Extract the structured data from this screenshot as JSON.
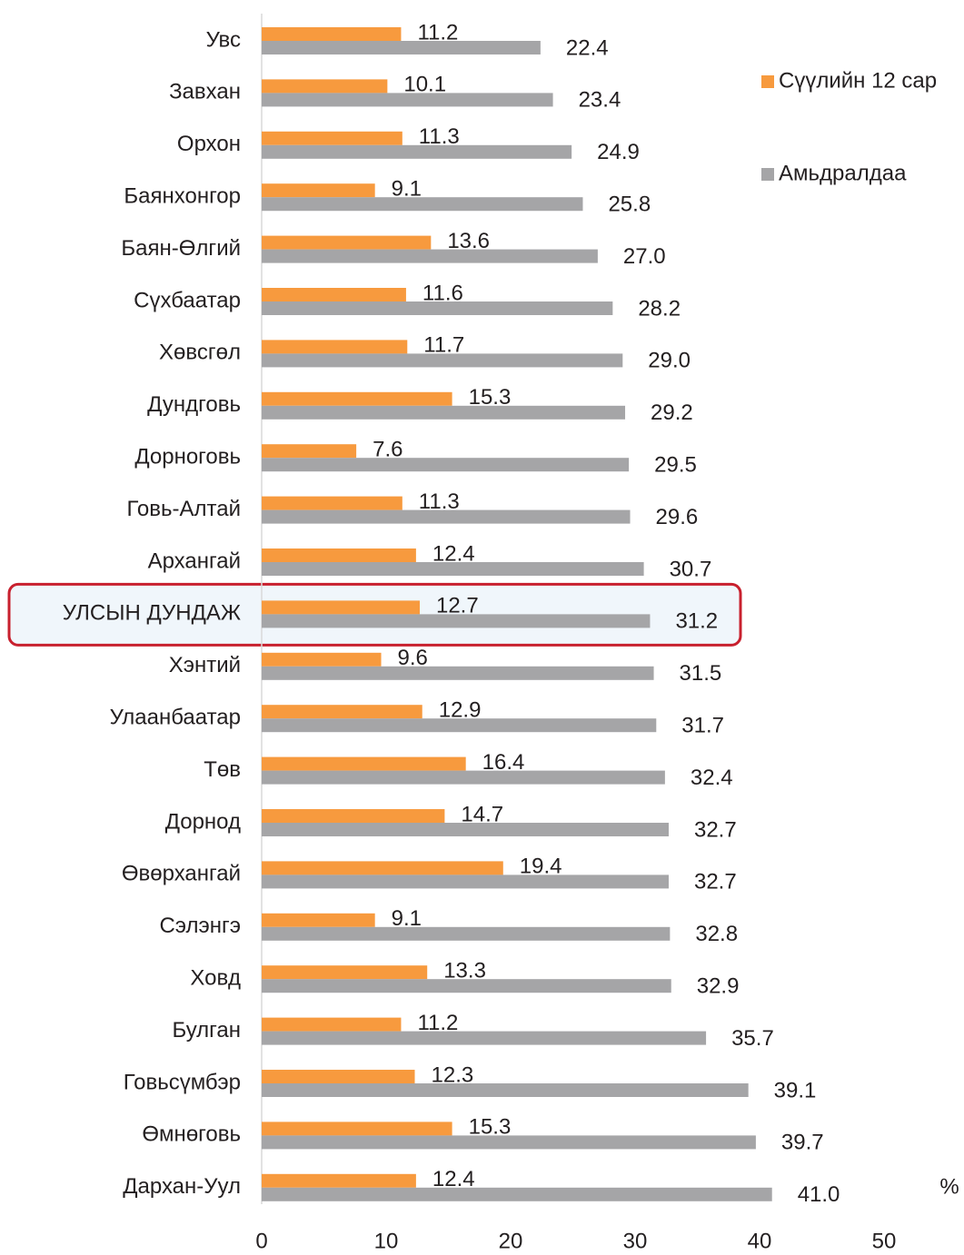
{
  "chart_data": {
    "type": "bar",
    "orientation": "horizontal",
    "categories": [
      "Увс",
      "Завхан",
      "Орхон",
      "Баянхонгор",
      "Баян-Өлгий",
      "Сүхбаатар",
      "Хөвсгөл",
      "Дундговь",
      "Дорноговь",
      "Говь-Алтай",
      "Архангай",
      "УЛСЫН ДУНДАЖ",
      "Хэнтий",
      "Улаанбаатар",
      "Төв",
      "Дорнод",
      "Өвөрхангай",
      "Сэлэнгэ",
      "Ховд",
      "Булган",
      "Говьсүмбэр",
      "Өмнөговь",
      "Дархан-Уул"
    ],
    "series": [
      {
        "name": "Сүүлийн 12 сар",
        "color": "#f79a3e",
        "values": [
          11.2,
          10.1,
          11.3,
          9.1,
          13.6,
          11.6,
          11.7,
          15.3,
          7.6,
          11.3,
          12.4,
          12.7,
          9.6,
          12.9,
          16.4,
          14.7,
          19.4,
          9.1,
          13.3,
          11.2,
          12.3,
          15.3,
          12.4
        ],
        "value_labels": [
          "11.2",
          "10.1",
          "11.3",
          "9.1",
          "13.6",
          "11.6",
          "11.7",
          "15.3",
          "7.6",
          "11.3",
          "12.4",
          "12.7",
          "9.6",
          "12.9",
          "16.4",
          "14.7",
          "19.4",
          "9.1",
          "13.3",
          "11.2",
          "12.3",
          "15.3",
          "12.4"
        ]
      },
      {
        "name": "Амьдралдаа",
        "color": "#a5a5a7",
        "values": [
          22.4,
          23.4,
          24.9,
          25.8,
          27.0,
          28.2,
          29.0,
          29.2,
          29.5,
          29.6,
          30.7,
          31.2,
          31.5,
          31.7,
          32.4,
          32.7,
          32.7,
          32.8,
          32.9,
          35.7,
          39.1,
          39.7,
          41.0
        ],
        "value_labels": [
          "22.4",
          "23.4",
          "24.9",
          "25.8",
          "27.0",
          "28.2",
          "29.0",
          "29.2",
          "29.5",
          "29.6",
          "30.7",
          "31.2",
          "31.5",
          "31.7",
          "32.4",
          "32.7",
          "32.7",
          "32.8",
          "32.9",
          "35.7",
          "39.1",
          "39.7",
          "41.0"
        ]
      }
    ],
    "xlabel": "%",
    "xlim": [
      0,
      50
    ],
    "xticks": [
      0,
      10,
      20,
      30,
      40,
      50
    ],
    "highlight": 11,
    "legend": "right"
  }
}
